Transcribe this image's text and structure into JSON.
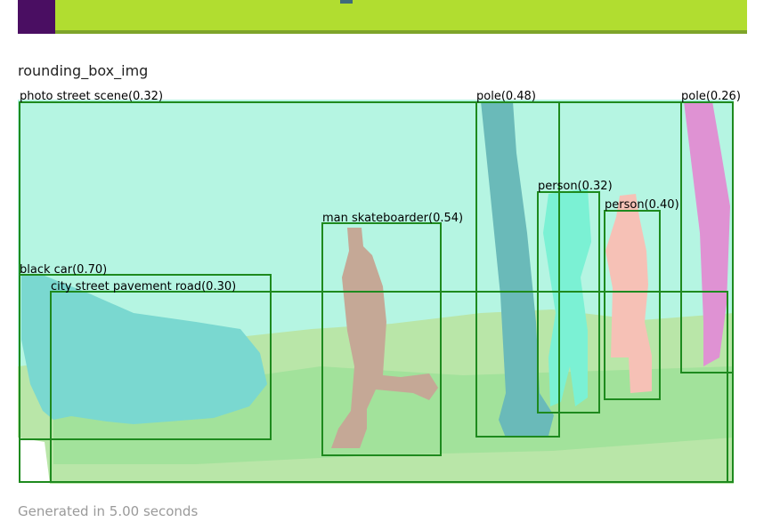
{
  "title": "rounding_box_img",
  "footer": "Generated in 5.00 seconds",
  "colors": {
    "box_stroke": "#1e8a1e",
    "sky": "#b5f5e2",
    "ground_light": "#b9e6a8",
    "ground_dark": "#98e095",
    "car": "#7ad8d0",
    "pole_left": "#6abab9",
    "pole_right": "#df92d3",
    "person_mid": "#7bf1d4",
    "person_right": "#f6c1b6",
    "skateboarder": "#c5a896",
    "strip_purple": "#4a0e62",
    "strip_green": "#b1dd30"
  },
  "detections": [
    {
      "label": "photo street scene(0.32)"
    },
    {
      "label": "pole(0.48)"
    },
    {
      "label": "pole(0.26)"
    },
    {
      "label": "person(0.32)"
    },
    {
      "label": "person(0.40)"
    },
    {
      "label": "man skateboarder(0.54)"
    },
    {
      "label": "black car(0.70)"
    },
    {
      "label": "city street pavement road(0.30)"
    }
  ]
}
